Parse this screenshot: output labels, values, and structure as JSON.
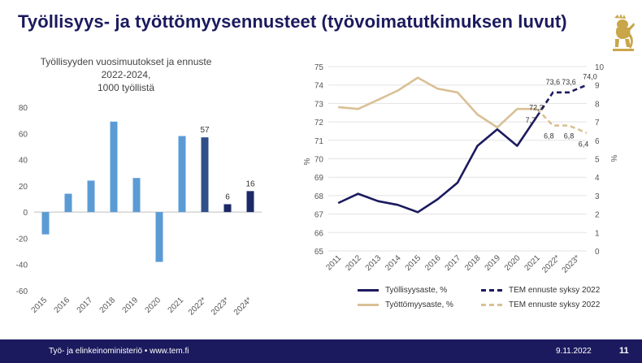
{
  "slide": {
    "title": "Työllisyys- ja työttömyysennusteet (työvoimatutkimuksen luvut)",
    "footer_left": "Työ- ja elinkeinoministeriö • www.tem.fi",
    "footer_date": "9.11.2022",
    "page_number": "11",
    "accent_color": "#1b1a5e",
    "logo_icon": "lion-crest-icon"
  },
  "chart_data": [
    {
      "type": "bar",
      "title": "Työllisyyden vuosimuutokset ja ennuste\n2022-2024,\n1000 työllistä",
      "categories": [
        "2015",
        "2016",
        "2017",
        "2018",
        "2019",
        "2020",
        "2021",
        "2022*",
        "2023*",
        "2024*"
      ],
      "values": [
        -17,
        14,
        24,
        69,
        26,
        -38,
        58,
        57,
        6,
        16
      ],
      "data_labels": {
        "7": "57",
        "8": "6",
        "9": "16"
      },
      "colors": [
        "#5b9bd5",
        "#5b9bd5",
        "#5b9bd5",
        "#5b9bd5",
        "#5b9bd5",
        "#5b9bd5",
        "#5b9bd5",
        "#2f4f8a",
        "#1b2a66",
        "#1b2a66"
      ],
      "ylim": [
        -60,
        80
      ],
      "yticks": [
        -60,
        -40,
        -20,
        0,
        20,
        40,
        60,
        80
      ],
      "grid": false
    },
    {
      "type": "line",
      "x": [
        "2011",
        "2012",
        "2013",
        "2014",
        "2015",
        "2016",
        "2017",
        "2018",
        "2019",
        "2020",
        "2021",
        "2022*",
        "2023*"
      ],
      "y_left_label": "%",
      "y_right_label": "%",
      "y_left_lim": [
        65,
        75
      ],
      "y_left_ticks": [
        65,
        66,
        67,
        68,
        69,
        70,
        71,
        72,
        73,
        74,
        75
      ],
      "y_right_lim": [
        0,
        10
      ],
      "y_right_ticks": [
        0,
        1,
        2,
        3,
        4,
        5,
        6,
        7,
        8,
        9,
        10
      ],
      "series": [
        {
          "name": "Työllisyysaste, %",
          "axis": "left",
          "color": "#1b1a5e",
          "dashed": false,
          "points": [
            [
              0,
              67.6
            ],
            [
              1,
              68.1
            ],
            [
              2,
              67.7
            ],
            [
              3,
              67.5
            ],
            [
              4,
              67.1
            ],
            [
              5,
              67.8
            ],
            [
              6,
              68.7
            ],
            [
              7,
              70.7
            ],
            [
              8,
              71.6
            ],
            [
              9,
              70.7
            ],
            [
              10,
              72.3
            ]
          ]
        },
        {
          "name": "TEM ennuste syksy 2022",
          "axis": "left",
          "color": "#1b1a5e",
          "dashed": true,
          "points": [
            [
              10,
              72.3
            ],
            [
              10.8,
              73.6
            ],
            [
              11.6,
              73.6
            ],
            [
              12.5,
              74.0
            ]
          ]
        },
        {
          "name": "Työttömyysaste, %",
          "axis": "right",
          "color": "#d9c095",
          "dashed": false,
          "points": [
            [
              0,
              7.8
            ],
            [
              1,
              7.7
            ],
            [
              2,
              8.2
            ],
            [
              3,
              8.7
            ],
            [
              4,
              9.4
            ],
            [
              5,
              8.8
            ],
            [
              6,
              8.6
            ],
            [
              7,
              7.4
            ],
            [
              8,
              6.7
            ],
            [
              9,
              7.7
            ],
            [
              10,
              7.7
            ]
          ]
        },
        {
          "name": "TEM ennuste syksy 2022",
          "axis": "right",
          "color": "#d9c095",
          "dashed": true,
          "points": [
            [
              10,
              7.7
            ],
            [
              10.8,
              6.8
            ],
            [
              11.6,
              6.8
            ],
            [
              12.5,
              6.4
            ]
          ]
        }
      ],
      "annotations": [
        {
          "text": "72,3",
          "axis": "left",
          "x": 10,
          "y": 72.3
        },
        {
          "text": "73,6",
          "axis": "left",
          "x": 10.8,
          "y": 73.6
        },
        {
          "text": "73,6",
          "axis": "left",
          "x": 11.6,
          "y": 73.6
        },
        {
          "text": "74,0",
          "axis": "left",
          "x": 12.5,
          "y": 74.0
        },
        {
          "text": "7,7",
          "axis": "right",
          "x": 10,
          "y": 7.7
        },
        {
          "text": "6,8",
          "axis": "right",
          "x": 10.8,
          "y": 6.8
        },
        {
          "text": "6,8",
          "axis": "right",
          "x": 11.6,
          "y": 6.8
        },
        {
          "text": "6,4",
          "axis": "right",
          "x": 12.5,
          "y": 6.4
        }
      ],
      "legend": [
        {
          "label": "Työllisyysaste, %",
          "color": "#1b1a5e",
          "dashed": false
        },
        {
          "label": "TEM ennuste syksy 2022",
          "color": "#1b1a5e",
          "dashed": true
        },
        {
          "label": "Työttömyysaste, %",
          "color": "#d9c095",
          "dashed": false
        },
        {
          "label": "TEM ennuste syksy 2022",
          "color": "#d9c095",
          "dashed": true
        }
      ],
      "legend_position": "bottom",
      "grid": true
    }
  ]
}
